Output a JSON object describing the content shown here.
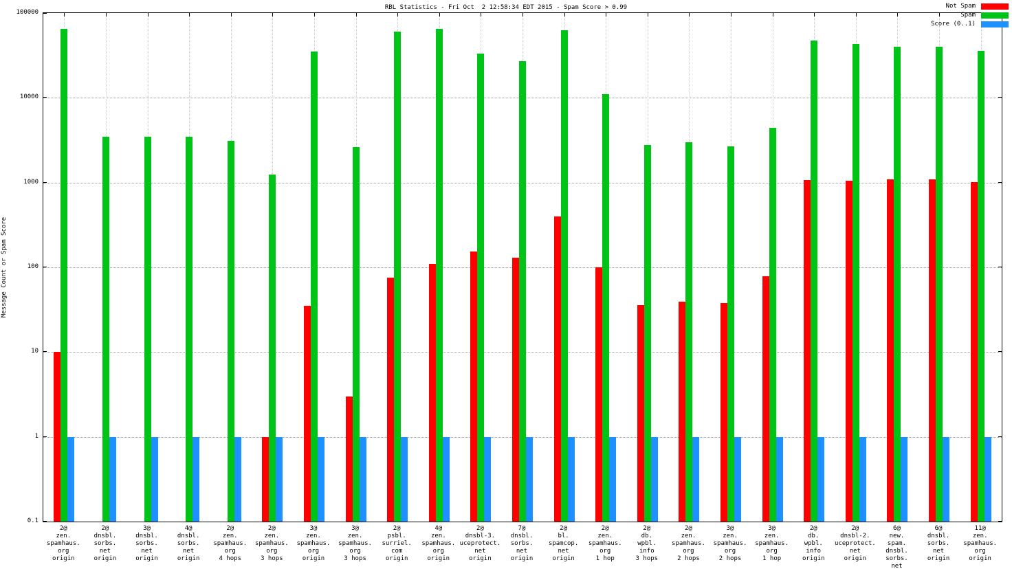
{
  "chart_data": {
    "type": "bar",
    "title": "RBL Statistics - Fri Oct  2 12:58:34 EDT 2015 - Spam Score > 0.99",
    "ylabel": "Message Count or Spam Score",
    "xlabel": "",
    "yscale": "log",
    "ylim": [
      0.1,
      100000
    ],
    "ytick_labels": [
      "0.1",
      "1",
      "10",
      "100",
      "1000",
      "10000",
      "100000"
    ],
    "grid": true,
    "legend_position": "top-right",
    "colors": {
      "not_spam": "#ff0000",
      "spam": "#00c317",
      "score": "#1e90ff",
      "grid": "#9a9a9a"
    },
    "legend": [
      {
        "name": "Not Spam",
        "color": "#ff0000"
      },
      {
        "name": "Spam",
        "color": "#00c317"
      },
      {
        "name": "Score (0..1)",
        "color": "#1e90ff"
      }
    ],
    "categories": [
      "2@\nzen.\nspamhaus.\norg\norigin",
      "2@\ndnsbl.\nsorbs.\nnet\norigin",
      "3@\ndnsbl.\nsorbs.\nnet\norigin",
      "4@\ndnsbl.\nsorbs.\nnet\norigin",
      "2@\nzen.\nspamhaus.\norg\n4 hops",
      "2@\nzen.\nspamhaus.\norg\n3 hops",
      "3@\nzen.\nspamhaus.\norg\norigin",
      "3@\nzen.\nspamhaus.\norg\n3 hops",
      "2@\npsbl.\nsurriel.\ncom\norigin",
      "4@\nzen.\nspamhaus.\norg\norigin",
      "2@\ndnsbl-3.\nuceprotect.\nnet\norigin",
      "7@\ndnsbl.\nsorbs.\nnet\norigin",
      "2@\nbl.\nspamcop.\nnet\norigin",
      "2@\nzen.\nspamhaus.\norg\n1 hop",
      "2@\ndb.\nwpbl.\ninfo\n3 hops",
      "2@\nzen.\nspamhaus.\norg\n2 hops",
      "3@\nzen.\nspamhaus.\norg\n2 hops",
      "3@\nzen.\nspamhaus.\norg\n1 hop",
      "2@\ndb.\nwpbl.\ninfo\norigin",
      "2@\ndnsbl-2.\nuceprotect.\nnet\norigin",
      "6@\nnew.\nspam.\ndnsbl.\nsorbs.\nnet\norigin",
      "6@\ndnsbl.\nsorbs.\nnet\norigin",
      "11@\nzen.\nspamhaus.\norg\norigin"
    ],
    "series": [
      {
        "name": "Not Spam",
        "color": "#ff0000",
        "values": [
          10,
          0,
          0,
          0,
          0,
          1,
          35,
          3,
          75,
          110,
          155,
          130,
          400,
          100,
          36,
          39,
          38,
          78,
          1080,
          1050,
          1100,
          1100,
          1020
        ]
      },
      {
        "name": "Spam",
        "color": "#00c317",
        "values": [
          65000,
          3500,
          3500,
          3500,
          3100,
          1250,
          35000,
          2600,
          60000,
          65000,
          33000,
          27000,
          63000,
          11000,
          2800,
          3000,
          2650,
          4400,
          47000,
          43000,
          40000,
          40000,
          36000
        ]
      },
      {
        "name": "Score (0..1)",
        "color": "#1e90ff",
        "values": [
          1,
          1,
          1,
          1,
          1,
          1,
          1,
          1,
          1,
          1,
          1,
          1,
          1,
          1,
          1,
          1,
          1,
          1,
          1,
          1,
          1,
          1,
          1
        ]
      }
    ]
  }
}
